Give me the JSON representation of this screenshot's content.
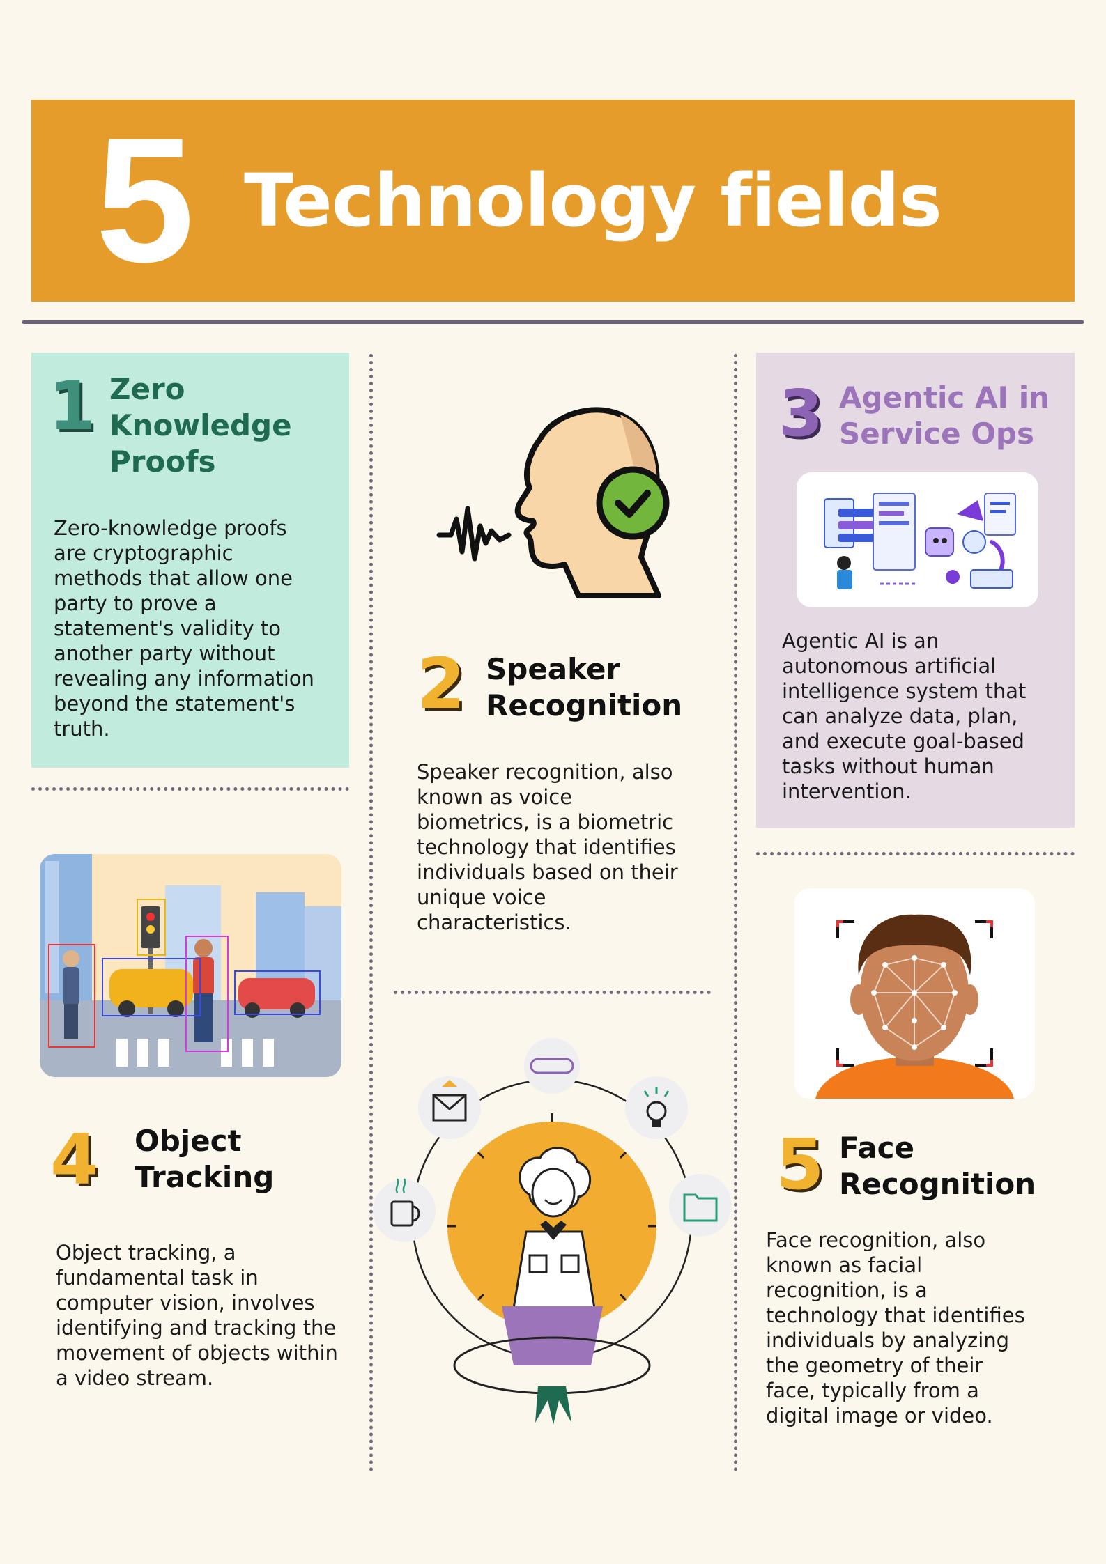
{
  "banner": {
    "number": "5",
    "title": "Technology fields"
  },
  "sections": [
    {
      "number": "1",
      "heading": [
        "Zero",
        "Knowledge",
        "Proofs"
      ],
      "description": [
        "Zero-knowledge proofs",
        "are cryptographic",
        "methods that allow one",
        "party to prove a",
        "statement's validity to",
        "another party without",
        "revealing any information",
        "beyond the statement's",
        "truth."
      ]
    },
    {
      "number": "2",
      "heading": [
        "Speaker",
        "Recognition"
      ],
      "description": [
        "Speaker recognition, also",
        "known as voice",
        "biometrics, is a biometric",
        "technology that identifies",
        "individuals based on their",
        "unique voice",
        "characteristics."
      ]
    },
    {
      "number": "3",
      "heading": [
        "Agentic AI in",
        "Service Ops"
      ],
      "description": [
        "Agentic AI is an",
        "autonomous artificial",
        "intelligence system that",
        "can analyze data, plan,",
        "and execute goal-based",
        "tasks without human",
        "intervention."
      ]
    },
    {
      "number": "4",
      "heading": [
        "Object",
        "Tracking"
      ],
      "description": [
        "Object tracking, a",
        "fundamental task in",
        "computer vision, involves",
        "identifying and tracking the",
        "movement of objects within",
        "a video stream."
      ]
    },
    {
      "number": "5",
      "heading": [
        "Face",
        "Recognition"
      ],
      "description": [
        "Face recognition, also",
        "known as facial",
        "recognition, is a",
        "technology that identifies",
        "individuals by analyzing",
        "the geometry of their",
        "face, typically from a",
        "digital image or video."
      ]
    }
  ],
  "colors": {
    "background": "#fbf7ec",
    "banner": "#e69c2a",
    "teal_card": "#c1ebdd",
    "teal_heading": "#1f6b52",
    "purple_card": "#e5dae4",
    "purple_heading": "#9b74b9",
    "orange_number": "#f1b22f"
  }
}
